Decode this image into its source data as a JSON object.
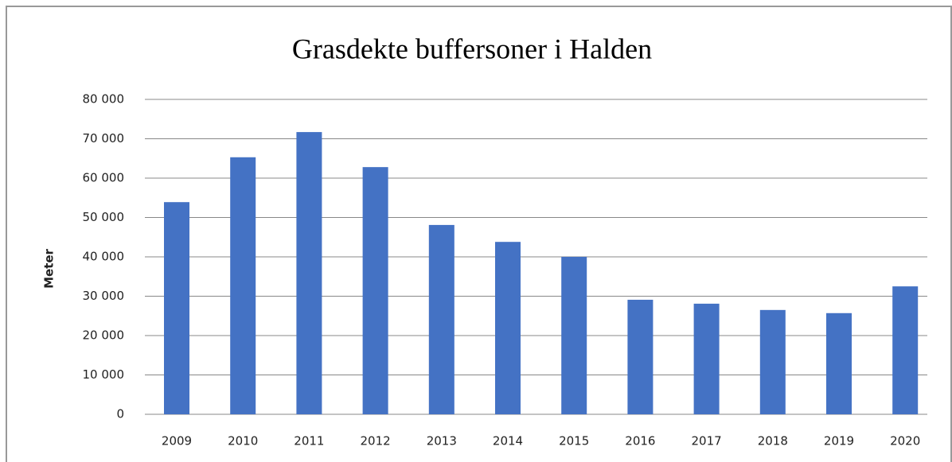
{
  "chart_data": {
    "type": "bar",
    "title": "Grasdekte buffersoner i Halden",
    "y_label": "Meter",
    "categories": [
      "2009",
      "2010",
      "2011",
      "2012",
      "2013",
      "2014",
      "2015",
      "2016",
      "2017",
      "2018",
      "2019",
      "2020"
    ],
    "values": [
      53900,
      65300,
      71700,
      62800,
      48100,
      43800,
      40000,
      29100,
      28100,
      26500,
      25700,
      32500
    ],
    "color": "#4472c4",
    "ylim": [
      0,
      80000
    ],
    "yticks": [
      0,
      {
        "value": 10000,
        "label": "10 000"
      },
      {
        "value": 20000,
        "label": "20 000"
      },
      {
        "value": 30000,
        "label": "30 000"
      },
      {
        "value": 40000,
        "label": "40 000"
      },
      {
        "value": 50000,
        "label": "50 000"
      },
      {
        "value": 60000,
        "label": "60 000"
      },
      {
        "value": 70000,
        "label": "70 000"
      },
      {
        "value": 80000,
        "label": "80 000"
      }
    ],
    "grid": true
  }
}
